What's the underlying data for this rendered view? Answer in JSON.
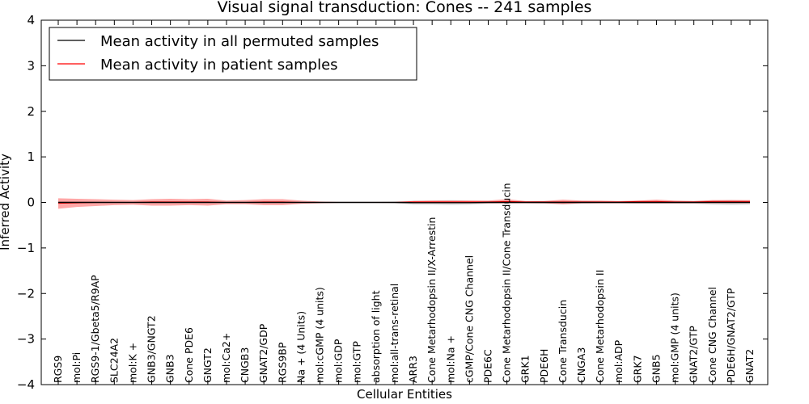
{
  "chart_data": {
    "type": "line",
    "title": "Visual signal transduction: Cones -- 241 samples",
    "xlabel": "Cellular Entities",
    "ylabel": "Inferred Activity",
    "ylim": [
      -4,
      4
    ],
    "yticks": [
      -4,
      -3,
      -2,
      -1,
      0,
      1,
      2,
      3,
      4
    ],
    "ytick_labels": [
      "−4",
      "−3",
      "−2",
      "−1",
      "0",
      "1",
      "2",
      "3",
      "4"
    ],
    "grid": false,
    "legend_position": "top-left",
    "categories": [
      "RGS9",
      "mol:Pi",
      "RGS9-1/Gbeta5/R9AP",
      "SLC24A2",
      "mol:K +",
      "GNB3/GNGT2",
      "GNB3",
      "Cone PDE6",
      "GNGT2",
      "mol:Ca2+",
      "CNGB3",
      "GNAT2/GDP",
      "RGS9BP",
      "Na + (4 Units)",
      "mol:cGMP (4 units)",
      "mol:GDP",
      "mol:GTP",
      "absorption of light",
      "mol:all-trans-retinal",
      "ARR3",
      "Cone Metarhodopsin II/X-Arrestin",
      "mol:Na +",
      "cGMP/Cone CNG Channel",
      "PDE6C",
      "Cone Metarhodopsin II/Cone Transducin",
      "GRK1",
      "PDE6H",
      "Cone Transducin",
      "CNGA3",
      "Cone Metarhodopsin II",
      "mol:ADP",
      "GRK7",
      "GNB5",
      "mol:GMP (4 units)",
      "GNAT2/GTP",
      "Cone CNG Channel",
      "PDE6H/GNAT2/GTP",
      "GNAT2"
    ],
    "series": [
      {
        "name": "Mean activity in all permuted samples",
        "color": "#000000",
        "values": [
          0.0,
          0.0,
          0.0,
          0.0,
          0.0,
          0.0,
          0.0,
          0.0,
          0.0,
          0.0,
          0.0,
          0.0,
          0.0,
          0.0,
          0.0,
          0.0,
          0.0,
          0.0,
          0.0,
          -0.005,
          -0.005,
          -0.005,
          -0.005,
          0.0,
          0.0,
          0.0,
          0.0,
          0.0,
          0.0,
          0.0,
          0.0,
          0.0,
          0.0,
          0.0,
          0.0,
          0.0,
          0.0,
          0.0
        ],
        "band_low": [
          -0.02,
          -0.02,
          -0.02,
          -0.01,
          -0.01,
          -0.01,
          -0.01,
          -0.01,
          -0.01,
          -0.01,
          -0.01,
          -0.01,
          -0.01,
          -0.01,
          -0.01,
          -0.01,
          -0.01,
          -0.01,
          -0.02,
          -0.05,
          -0.05,
          -0.06,
          -0.05,
          -0.03,
          -0.02,
          -0.02,
          -0.03,
          -0.04,
          -0.03,
          -0.02,
          -0.02,
          -0.03,
          -0.03,
          -0.03,
          -0.03,
          -0.05,
          -0.06,
          -0.05
        ],
        "band_high": [
          0.02,
          0.02,
          0.02,
          0.01,
          0.01,
          0.01,
          0.01,
          0.01,
          0.01,
          0.01,
          0.01,
          0.01,
          0.01,
          0.01,
          0.01,
          0.01,
          0.01,
          0.01,
          0.02,
          0.04,
          0.04,
          0.05,
          0.04,
          0.03,
          0.02,
          0.02,
          0.03,
          0.03,
          0.03,
          0.02,
          0.02,
          0.03,
          0.03,
          0.03,
          0.03,
          0.04,
          0.05,
          0.04
        ]
      },
      {
        "name": "Mean activity in patient samples",
        "color": "#ff0000",
        "values": [
          -0.02,
          -0.01,
          0.0,
          0.0,
          0.0,
          0.01,
          0.01,
          0.01,
          0.01,
          0.0,
          0.0,
          0.01,
          0.01,
          0.0,
          0.0,
          0.0,
          0.0,
          0.0,
          0.0,
          0.01,
          0.01,
          0.01,
          0.01,
          0.01,
          0.02,
          0.01,
          0.01,
          0.01,
          0.01,
          0.01,
          0.01,
          0.02,
          0.02,
          0.01,
          0.01,
          0.02,
          0.02,
          0.02
        ],
        "band_low": [
          -0.14,
          -0.1,
          -0.08,
          -0.06,
          -0.05,
          -0.07,
          -0.07,
          -0.06,
          -0.07,
          -0.04,
          -0.04,
          -0.06,
          -0.06,
          -0.03,
          -0.02,
          -0.01,
          -0.01,
          -0.01,
          -0.01,
          -0.02,
          -0.02,
          -0.02,
          -0.02,
          -0.02,
          -0.02,
          -0.02,
          -0.02,
          -0.04,
          -0.02,
          -0.02,
          -0.02,
          -0.02,
          -0.02,
          -0.02,
          -0.02,
          -0.02,
          -0.02,
          -0.02
        ],
        "band_high": [
          0.09,
          0.08,
          0.07,
          0.06,
          0.05,
          0.07,
          0.08,
          0.07,
          0.08,
          0.04,
          0.05,
          0.07,
          0.07,
          0.04,
          0.02,
          0.01,
          0.01,
          0.01,
          0.01,
          0.03,
          0.04,
          0.04,
          0.04,
          0.04,
          0.07,
          0.03,
          0.03,
          0.06,
          0.04,
          0.04,
          0.03,
          0.04,
          0.06,
          0.04,
          0.03,
          0.05,
          0.05,
          0.05
        ]
      }
    ]
  }
}
